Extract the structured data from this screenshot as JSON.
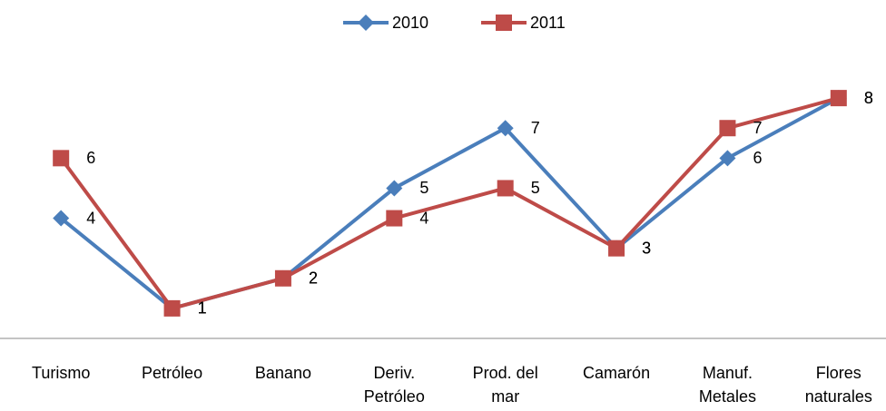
{
  "chart_data": {
    "type": "line",
    "categories": [
      "Turismo",
      "Petróleo",
      "Banano",
      "Deriv. Petróleo",
      "Prod. del mar",
      "Camarón",
      "Manuf. Metales",
      "Flores naturales"
    ],
    "series": [
      {
        "name": "2010",
        "color": "#4a7ebb",
        "marker": "diamond",
        "values": [
          4,
          1,
          2,
          5,
          7,
          3,
          6,
          8
        ]
      },
      {
        "name": "2011",
        "color": "#be4b48",
        "marker": "square",
        "values": [
          6,
          1,
          2,
          4,
          5,
          3,
          7,
          8
        ]
      }
    ],
    "ylim": [
      0,
      9
    ],
    "legend": "top",
    "grid": false
  }
}
